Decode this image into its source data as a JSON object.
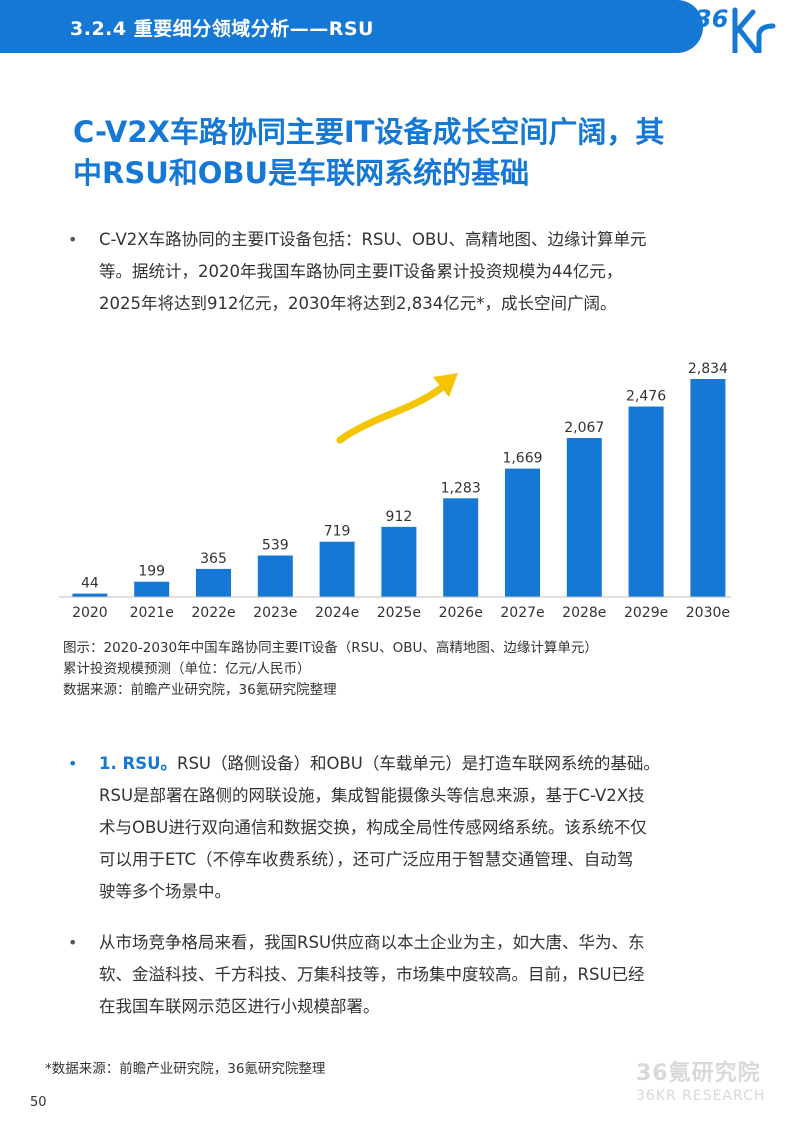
{
  "header": {
    "section_title": "3.2.4 重要细分领域分析——RSU",
    "logo_text": "36Kr"
  },
  "headline": {
    "line1": "C-V2X车路协同主要IT设备成长空间广阔，其",
    "line2": "中RSU和OBU是车联网系统的基础"
  },
  "intro_bullet": {
    "marker": "•",
    "lines": [
      "C-V2X车路协同的主要IT设备包括：RSU、OBU、高精地图、边缘计算单元",
      "等。据统计，2020年我国车路协同主要IT设备累计投资规模为44亿元，",
      "2025年将达到912亿元，2030年将达到2,834亿元*，成长空间广阔。"
    ]
  },
  "chart_data": {
    "type": "bar",
    "categories": [
      "2020",
      "2021e",
      "2022e",
      "2023e",
      "2024e",
      "2025e",
      "2026e",
      "2027e",
      "2028e",
      "2029e",
      "2030e"
    ],
    "values": [
      44,
      199,
      365,
      539,
      719,
      912,
      1283,
      1669,
      2067,
      2476,
      2834
    ],
    "value_labels": [
      "44",
      "199",
      "365",
      "539",
      "719",
      "912",
      "1,283",
      "1,669",
      "2,067",
      "2,476",
      "2,834"
    ],
    "ylim": [
      0,
      2834
    ],
    "grid": false,
    "legend": "none",
    "bar_color": "#1478d4",
    "arrow_color": "#f5c400",
    "title": "",
    "xlabel": "",
    "ylabel": ""
  },
  "caption": {
    "line1": "图示：2020-2030年中国车路协同主要IT设备（RSU、OBU、高精地图、边缘计算单元）",
    "line2": "累计投资规模预测（单位：亿元/人民币）",
    "line3": "数据来源：前瞻产业研究院，36氪研究院整理"
  },
  "rsu_bullet": {
    "marker": "•",
    "lead": "1. RSU。",
    "first_line_rest": "RSU（路侧设备）和OBU（车载单元）是打造车联网系统的基础。",
    "lines": [
      "RSU是部署在路侧的网联设施，集成智能摄像头等信息来源，基于C-V2X技",
      "术与OBU进行双向通信和数据交换，构成全局性传感网络系统。该系统不仅",
      "可以用于ETC（不停车收费系统），还可广泛应用于智慧交通管理、自动驾",
      "驶等多个场景中。"
    ]
  },
  "market_bullet": {
    "marker": "•",
    "lines": [
      "从市场竞争格局来看，我国RSU供应商以本土企业为主，如大唐、华为、东",
      "软、金溢科技、千方科技、万集科技等，市场集中度较高。目前，RSU已经",
      "在我国车联网示范区进行小规模部署。"
    ]
  },
  "footnote": "*数据来源：前瞻产业研究院，36氪研究院整理",
  "page_number": "50",
  "watermark": {
    "cn": "36氪研究院",
    "en": "36KR RESEARCH"
  },
  "colors": {
    "accent": "#1478d4",
    "text": "#333333",
    "watermark": "#d9d9d9"
  }
}
